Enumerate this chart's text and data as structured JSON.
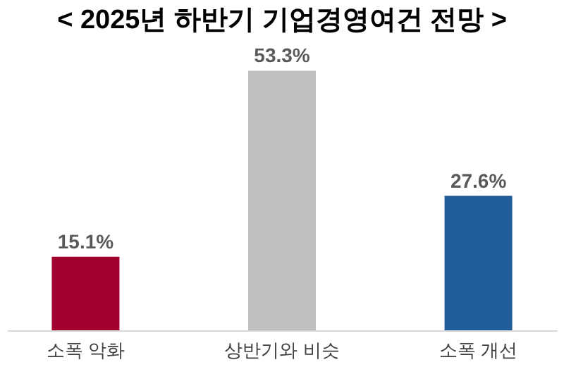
{
  "chart_data": {
    "type": "bar",
    "title": "< 2025년 하반기 기업경영여건 전망 >",
    "categories": [
      "소폭 악화",
      "상반기와 비슷",
      "소폭 개선"
    ],
    "values": [
      15.1,
      53.3,
      27.6
    ],
    "colors": [
      "#a0002e",
      "#bfbfbf",
      "#1f5c99"
    ],
    "value_labels": [
      "15.1%",
      "53.3%",
      "27.6%"
    ],
    "grid": false
  }
}
